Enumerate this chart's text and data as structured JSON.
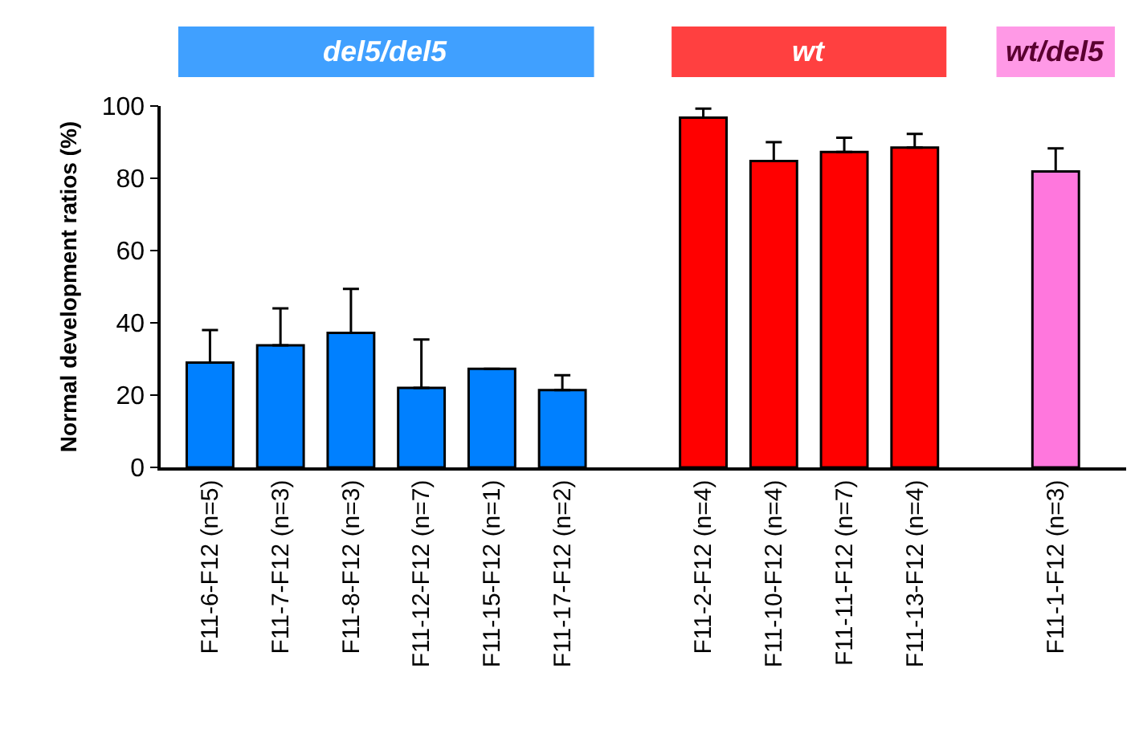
{
  "chart_data": {
    "type": "bar",
    "ylabel": "Normal development ratios (%)",
    "categories": [
      "F11-6-F12 (n=5)",
      "F11-7-F12 (n=3)",
      "F11-8-F12 (n=3)",
      "F11-12-F12 (n=7)",
      "F11-15-F12 (n=1)",
      "F11-17-F12 (n=2)",
      null,
      "F11-2-F12 (n=4)",
      "F11-10-F12 (n=4)",
      "F11-11-F12 (n=7)",
      "F11-13-F12 (n=4)",
      null,
      "F11-1-F12 (n=3)"
    ],
    "series": [
      {
        "name": "del5/del5",
        "color": "#0080ff",
        "values": [
          29,
          33.8,
          37.2,
          22,
          27.3,
          21.4,
          null,
          null,
          null,
          null,
          null,
          null,
          null
        ],
        "errors": [
          [
            29,
            38
          ],
          [
            33.8,
            44
          ],
          [
            37.2,
            49.4
          ],
          [
            22,
            35.4
          ],
          null,
          [
            21.4,
            25.5
          ],
          null,
          null,
          null,
          null,
          null,
          null,
          null
        ]
      },
      {
        "name": "wt",
        "color": "#ff0000",
        "values": [
          null,
          null,
          null,
          null,
          null,
          null,
          null,
          96.8,
          84.8,
          87.3,
          88.5,
          null,
          null
        ],
        "errors": [
          null,
          null,
          null,
          null,
          null,
          null,
          null,
          [
            96.8,
            99.3
          ],
          [
            84.8,
            90
          ],
          [
            87.3,
            91.2
          ],
          [
            88.5,
            92.3
          ],
          null,
          null
        ]
      },
      {
        "name": "wt/del5",
        "color": "#ff77dd",
        "values": [
          null,
          null,
          null,
          null,
          null,
          null,
          null,
          null,
          null,
          null,
          null,
          null,
          81.9
        ],
        "errors": [
          null,
          null,
          null,
          null,
          null,
          null,
          null,
          null,
          null,
          null,
          null,
          null,
          [
            81.9,
            88.3
          ]
        ]
      }
    ],
    "ylim": [
      0,
      100
    ],
    "yticks": [
      0,
      20,
      40,
      60,
      80,
      100
    ],
    "grid": false,
    "legend": false
  }
}
